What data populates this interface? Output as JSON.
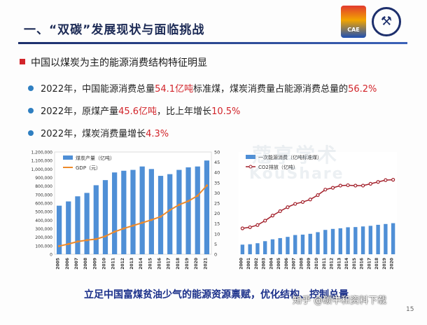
{
  "slide": {
    "title": "一、“双碳”发展现状与面临挑战",
    "logo_left_text": "CAE",
    "heading": "中国以煤炭为主的能源消费结构特征明显",
    "bullets": [
      {
        "pre": "2022年，中国能源消费总量",
        "v1": "54.1亿吨",
        "mid": "标准煤，煤炭消费量占能源消费总量的",
        "v2": "56.2%",
        "post": ""
      },
      {
        "pre": "2022年，原煤产量",
        "v1": "45.6亿吨",
        "mid": "，比上年增长",
        "v2": "10.5%",
        "post": ""
      },
      {
        "pre": "2022年，煤炭消费量增长",
        "v1": "4.3%",
        "mid": "",
        "v2": "",
        "post": ""
      }
    ],
    "footer": "立足中国富煤贫油少气的能源资源禀赋，优化结构、控制总量",
    "watermark": "知乎 @碳中和资料下载",
    "page_number": "15",
    "bg_watermark_cn": "蔻享学术",
    "bg_watermark_en": "KouShare"
  },
  "colors": {
    "bar_left": "#4f8fd6",
    "line_left": "#ee8a2a",
    "bar_right": "#4f8fd6",
    "line_right": "#a3202b",
    "title": "#1c2a55",
    "highlight": "#d2242a"
  },
  "chart_data": [
    {
      "type": "bar",
      "categories": [
        "2005",
        "2006",
        "2007",
        "2008",
        "2009",
        "2010",
        "2011",
        "2012",
        "2013",
        "2014",
        "2015",
        "2016",
        "2017",
        "2018",
        "2019",
        "2020",
        "2021"
      ],
      "series": [
        {
          "name": "煤炭产量（亿吨）",
          "type": "bar",
          "axis": "left",
          "values": [
            570000,
            620000,
            680000,
            720000,
            810000,
            870000,
            960000,
            980000,
            990000,
            1030000,
            1000000,
            920000,
            940000,
            990000,
            1020000,
            1030000,
            1100000
          ]
        },
        {
          "name": "GDP（元）",
          "type": "line",
          "axis": "right",
          "values": [
            4.0,
            5.0,
            6.2,
            6.9,
            7.4,
            8.8,
            11.0,
            12.6,
            14.0,
            15.4,
            16.8,
            18.4,
            21.6,
            24.2,
            26.0,
            28.6,
            33.6
          ]
        }
      ],
      "ylim_left": [
        0,
        1200000
      ],
      "ylim_right": [
        0,
        50
      ],
      "yticks_left": [
        "0",
        "100,000",
        "200,000",
        "300,000",
        "400,000",
        "500,000",
        "600,000",
        "700,000",
        "800,000",
        "900,000",
        "1,000,000",
        "1,100,000",
        "1,200,000"
      ],
      "yticks_right": [
        "0",
        "5",
        "10",
        "15",
        "20",
        "25",
        "30",
        "35",
        "40",
        "45",
        "50"
      ],
      "legend_placement": "top-left",
      "grid": false
    },
    {
      "type": "bar",
      "categories": [
        "2000",
        "2001",
        "2002",
        "2003",
        "2004",
        "2005",
        "2006",
        "2007",
        "2008",
        "2009",
        "2010",
        "2011",
        "2012",
        "2013",
        "2014",
        "2015",
        "2016",
        "2017",
        "2018",
        "2019",
        "2020"
      ],
      "series": [
        {
          "name": "一次能源消费（亿吨标准煤）",
          "type": "bar",
          "values": [
            4.7,
            4.9,
            5.4,
            6.4,
            7.3,
            7.9,
            8.5,
            9.4,
            9.6,
            10.0,
            10.8,
            11.9,
            12.4,
            12.7,
            13.2,
            13.3,
            13.6,
            13.9,
            14.4,
            14.8,
            15.2
          ]
        },
        {
          "name": "CO2排放（亿吨）",
          "type": "line",
          "values": [
            35.5,
            37.0,
            40.0,
            46.0,
            53.0,
            59.0,
            64.5,
            69.0,
            71.5,
            75.0,
            81.0,
            88.5,
            91.0,
            94.0,
            94.5,
            94.0,
            94.0,
            96.5,
            99.0,
            101.5,
            102.0
          ]
        }
      ],
      "ylim_bar": [
        0,
        50
      ],
      "ylim_line": [
        0,
        140
      ],
      "legend_placement": "top-left",
      "grid": false
    }
  ]
}
